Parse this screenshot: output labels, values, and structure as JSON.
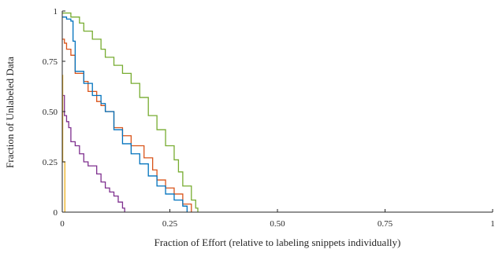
{
  "chart_data": {
    "type": "line",
    "step": true,
    "title": "",
    "xlabel": "Fraction of Effort (relative to labeling snippets individually)",
    "ylabel": "Fraction of Unlabeled Data",
    "xlim": [
      0,
      1
    ],
    "ylim": [
      0,
      1
    ],
    "x_ticks": [
      0,
      0.25,
      0.5,
      0.75,
      1
    ],
    "x_tick_labels": [
      "0",
      "0.25",
      "0.50",
      "0.75",
      "1"
    ],
    "y_ticks": [
      0,
      0.25,
      0.5,
      0.75,
      1
    ],
    "y_tick_labels": [
      "0",
      "0.25",
      "0.50",
      "0.75",
      "1"
    ],
    "grid": false,
    "legend": "none",
    "series": [
      {
        "color": "#77ac30",
        "x": [
          0,
          0.02,
          0.04,
          0.05,
          0.07,
          0.09,
          0.1,
          0.12,
          0.14,
          0.16,
          0.18,
          0.2,
          0.22,
          0.24,
          0.26,
          0.27,
          0.28,
          0.3,
          0.31,
          0.315
        ],
        "y": [
          0.99,
          0.97,
          0.94,
          0.9,
          0.86,
          0.81,
          0.77,
          0.73,
          0.69,
          0.64,
          0.57,
          0.48,
          0.41,
          0.33,
          0.26,
          0.2,
          0.13,
          0.06,
          0.02,
          0
        ]
      },
      {
        "color": "#d95319",
        "x": [
          0,
          0.005,
          0.01,
          0.02,
          0.03,
          0.05,
          0.06,
          0.08,
          0.09,
          0.1,
          0.12,
          0.14,
          0.16,
          0.19,
          0.21,
          0.22,
          0.24,
          0.26,
          0.28,
          0.3
        ],
        "y": [
          0.86,
          0.84,
          0.81,
          0.78,
          0.69,
          0.65,
          0.6,
          0.55,
          0.53,
          0.5,
          0.42,
          0.38,
          0.33,
          0.27,
          0.21,
          0.16,
          0.12,
          0.09,
          0.04,
          0
        ]
      },
      {
        "color": "#0072bd",
        "x": [
          0,
          0.01,
          0.02,
          0.025,
          0.03,
          0.05,
          0.07,
          0.09,
          0.1,
          0.12,
          0.14,
          0.16,
          0.18,
          0.2,
          0.22,
          0.24,
          0.26,
          0.28,
          0.29
        ],
        "y": [
          0.97,
          0.96,
          0.95,
          0.85,
          0.7,
          0.64,
          0.58,
          0.54,
          0.5,
          0.41,
          0.34,
          0.29,
          0.24,
          0.18,
          0.13,
          0.09,
          0.06,
          0.03,
          0
        ]
      },
      {
        "color": "#7e2f8e",
        "x": [
          0,
          0.005,
          0.01,
          0.015,
          0.02,
          0.03,
          0.04,
          0.05,
          0.06,
          0.08,
          0.09,
          0.1,
          0.11,
          0.12,
          0.13,
          0.14,
          0.145
        ],
        "y": [
          0.58,
          0.48,
          0.45,
          0.42,
          0.35,
          0.33,
          0.29,
          0.25,
          0.23,
          0.19,
          0.15,
          0.12,
          0.1,
          0.08,
          0.05,
          0.02,
          0
        ]
      },
      {
        "color": "#edb120",
        "x": [
          0,
          0.001,
          0.004,
          0.006
        ],
        "y": [
          0.68,
          0.25,
          0.25,
          0
        ]
      }
    ]
  }
}
